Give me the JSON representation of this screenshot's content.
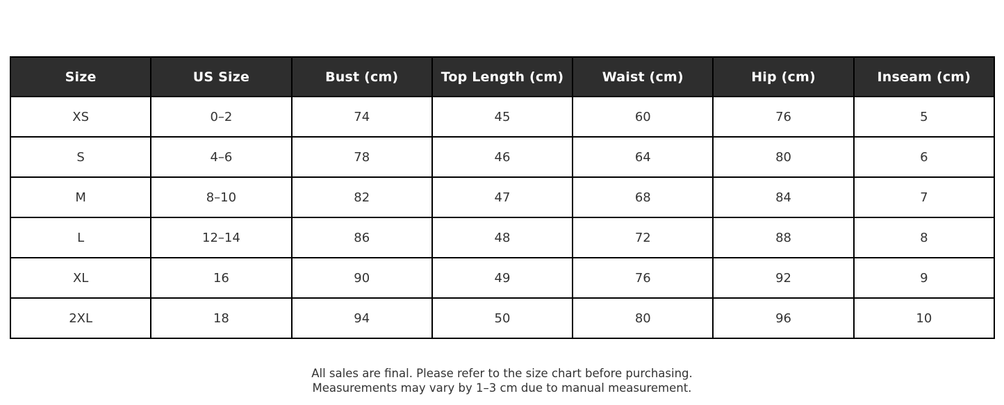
{
  "colors": {
    "header_bg": "#2e2e2e",
    "header_text": "#ffffff",
    "border": "#000000",
    "body_text": "#333333",
    "page_bg": "#ffffff"
  },
  "table": {
    "headers": [
      "Size",
      "US Size",
      "Bust (cm)",
      "Top Length (cm)",
      "Waist (cm)",
      "Hip (cm)",
      "Inseam (cm)"
    ],
    "rows": [
      [
        "XS",
        "0–2",
        "74",
        "45",
        "60",
        "76",
        "5"
      ],
      [
        "S",
        "4–6",
        "78",
        "46",
        "64",
        "80",
        "6"
      ],
      [
        "M",
        "8–10",
        "82",
        "47",
        "68",
        "84",
        "7"
      ],
      [
        "L",
        "12–14",
        "86",
        "48",
        "72",
        "88",
        "8"
      ],
      [
        "XL",
        "16",
        "90",
        "49",
        "76",
        "92",
        "9"
      ],
      [
        "2XL",
        "18",
        "94",
        "50",
        "80",
        "96",
        "10"
      ]
    ]
  },
  "footer": {
    "line1": "All sales are final. Please refer to the size chart before purchasing.",
    "line2": "Measurements may vary by 1–3 cm due to manual measurement."
  },
  "chart_data": {
    "type": "table",
    "title": "Apparel size chart",
    "columns": [
      "Size",
      "US Size",
      "Bust (cm)",
      "Top Length (cm)",
      "Waist (cm)",
      "Hip (cm)",
      "Inseam (cm)"
    ],
    "rows": [
      {
        "size": "XS",
        "us_size": "0–2",
        "bust_cm": 74,
        "top_length_cm": 45,
        "waist_cm": 60,
        "hip_cm": 76,
        "inseam_cm": 5
      },
      {
        "size": "S",
        "us_size": "4–6",
        "bust_cm": 78,
        "top_length_cm": 46,
        "waist_cm": 64,
        "hip_cm": 80,
        "inseam_cm": 6
      },
      {
        "size": "M",
        "us_size": "8–10",
        "bust_cm": 82,
        "top_length_cm": 47,
        "waist_cm": 68,
        "hip_cm": 84,
        "inseam_cm": 7
      },
      {
        "size": "L",
        "us_size": "12–14",
        "bust_cm": 86,
        "top_length_cm": 48,
        "waist_cm": 72,
        "hip_cm": 88,
        "inseam_cm": 8
      },
      {
        "size": "XL",
        "us_size": "16",
        "bust_cm": 90,
        "top_length_cm": 49,
        "waist_cm": 76,
        "hip_cm": 92,
        "inseam_cm": 9
      },
      {
        "size": "2XL",
        "us_size": "18",
        "bust_cm": 94,
        "top_length_cm": 50,
        "waist_cm": 80,
        "hip_cm": 96,
        "inseam_cm": 10
      }
    ],
    "notes": [
      "All sales are final. Please refer to the size chart before purchasing.",
      "Measurements may vary by 1–3 cm due to manual measurement."
    ]
  }
}
